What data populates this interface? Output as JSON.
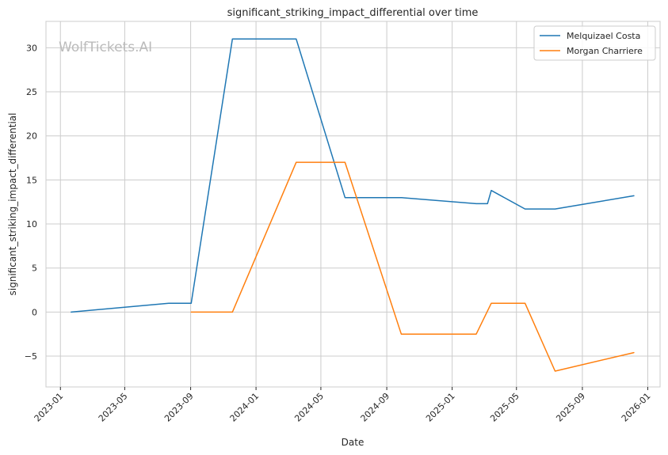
{
  "chart_data": {
    "type": "line",
    "title": "significant_striking_impact_differential over time",
    "xlabel": "Date",
    "ylabel": "significant_striking_impact_differential",
    "watermark": "WolfTickets.AI",
    "x_ticks": [
      "2023-01",
      "2023-05",
      "2023-09",
      "2024-01",
      "2024-05",
      "2024-09",
      "2025-01",
      "2025-05",
      "2025-09",
      "2026-01"
    ],
    "y_ticks": [
      -5,
      0,
      5,
      10,
      15,
      20,
      25,
      30
    ],
    "xlim": [
      "2022-12-05",
      "2026-01-24"
    ],
    "ylim": [
      -8.5,
      33
    ],
    "grid": true,
    "legend_position": "top-right",
    "series": [
      {
        "name": "Melquizael Costa",
        "color": "#1f77b4",
        "points": [
          {
            "x": "2023-01-21",
            "y": 0
          },
          {
            "x": "2023-07-22",
            "y": 1
          },
          {
            "x": "2023-09-02",
            "y": 1
          },
          {
            "x": "2023-11-18",
            "y": 31
          },
          {
            "x": "2024-03-16",
            "y": 31
          },
          {
            "x": "2024-06-15",
            "y": 13
          },
          {
            "x": "2024-09-28",
            "y": 13
          },
          {
            "x": "2025-02-15",
            "y": 12.3
          },
          {
            "x": "2025-03-08",
            "y": 12.3
          },
          {
            "x": "2025-03-15",
            "y": 13.8
          },
          {
            "x": "2025-05-17",
            "y": 11.7
          },
          {
            "x": "2025-07-12",
            "y": 11.7
          },
          {
            "x": "2025-12-06",
            "y": 13.2
          }
        ]
      },
      {
        "name": "Morgan Charriere",
        "color": "#ff7f0e",
        "points": [
          {
            "x": "2023-09-02",
            "y": 0
          },
          {
            "x": "2023-11-18",
            "y": 0
          },
          {
            "x": "2024-03-16",
            "y": 17
          },
          {
            "x": "2024-06-15",
            "y": 17
          },
          {
            "x": "2024-09-28",
            "y": -2.5
          },
          {
            "x": "2025-02-15",
            "y": -2.5
          },
          {
            "x": "2025-03-15",
            "y": 1
          },
          {
            "x": "2025-05-17",
            "y": 1
          },
          {
            "x": "2025-07-12",
            "y": -6.7
          },
          {
            "x": "2025-12-06",
            "y": -4.6
          }
        ]
      }
    ]
  }
}
